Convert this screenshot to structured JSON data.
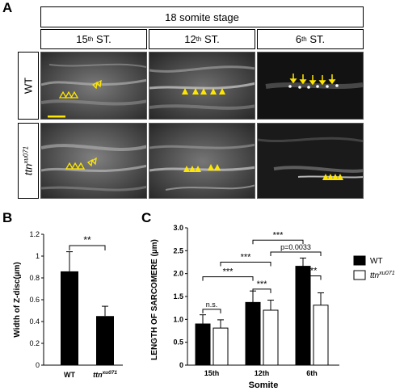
{
  "panels": {
    "A": "A",
    "B": "B",
    "C": "C"
  },
  "stage_label": "18 somite stage",
  "columns": [
    {
      "num": "15",
      "sup": "th",
      "suffix": " ST."
    },
    {
      "num": "12",
      "sup": "th",
      "suffix": " ST."
    },
    {
      "num": "6",
      "sup": "th",
      "suffix": " ST."
    }
  ],
  "rows": [
    {
      "text": "WT",
      "sup": ""
    },
    {
      "text": "ttn",
      "sup": "xu071"
    }
  ],
  "colors": {
    "bar_fill": "#000000",
    "arrowhead": "#ffe600",
    "scalebar": "#ffe600",
    "micrograph_bg": "#3a3a3a"
  },
  "chart_data": [
    {
      "type": "bar",
      "panel": "B",
      "categories": [
        "WT",
        "ttn"
      ],
      "category_sup": [
        "",
        "xu071"
      ],
      "values": [
        0.86,
        0.45
      ],
      "errors": [
        0.18,
        0.09
      ],
      "ylabel": "Width of Z-disc(µm)",
      "ylim": [
        0,
        1.2
      ],
      "yticks": [
        "0",
        "0.2",
        "0.4",
        "0.6",
        "0.8",
        "1",
        "1.2"
      ],
      "significance": [
        {
          "label": "**",
          "between": [
            0,
            1
          ]
        }
      ]
    },
    {
      "type": "bar",
      "panel": "C",
      "categories": [
        "15th",
        "12th",
        "6th"
      ],
      "xlabel": "Somite",
      "ylabel": "LENGTH OF SARCOMERE (µm)",
      "ylim": [
        0,
        3
      ],
      "yticks": [
        "0",
        "0.5",
        "1.0",
        "1.5",
        "2.0",
        "2.5",
        "3.0"
      ],
      "series": [
        {
          "name": "WT",
          "values": [
            0.9,
            1.37,
            2.16
          ],
          "errors": [
            0.2,
            0.25,
            0.18
          ],
          "fill": "#000000"
        },
        {
          "name": "ttn",
          "name_sup": "xu071",
          "values": [
            0.81,
            1.2,
            1.31
          ],
          "errors": [
            0.18,
            0.22,
            0.27
          ],
          "fill": "#ffffff"
        }
      ],
      "legend": "right",
      "significance": [
        {
          "label": "n.s.",
          "from": [
            0,
            0
          ],
          "to": [
            0,
            1
          ]
        },
        {
          "label": "***",
          "from": [
            0,
            0
          ],
          "to": [
            1,
            0
          ]
        },
        {
          "label": "***",
          "from": [
            1,
            0
          ],
          "to": [
            1,
            1
          ]
        },
        {
          "label": "***",
          "from": [
            0,
            1
          ],
          "to": [
            1,
            1
          ]
        },
        {
          "label": "***",
          "from": [
            1,
            0
          ],
          "to": [
            2,
            0
          ]
        },
        {
          "label": "p=0.0033",
          "from": [
            1,
            1
          ],
          "to": [
            2,
            1
          ]
        },
        {
          "label": "***",
          "from": [
            2,
            0
          ],
          "to": [
            2,
            1
          ]
        }
      ]
    }
  ]
}
